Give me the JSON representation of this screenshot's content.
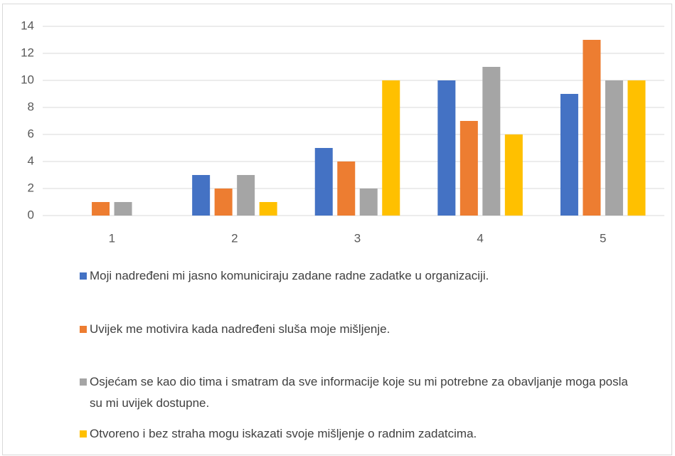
{
  "chart_data": {
    "type": "bar",
    "categories": [
      "1",
      "2",
      "3",
      "4",
      "5"
    ],
    "series": [
      {
        "name": "Moji nadređeni mi jasno komuniciraju zadane radne zadatke u organizaciji.",
        "color": "#4472c4",
        "values": [
          0,
          3,
          5,
          10,
          9
        ]
      },
      {
        "name": "Uvijek me motivira kada nadređeni sluša moje mišljenje.",
        "color": "#ed7d31",
        "values": [
          1,
          2,
          4,
          7,
          13
        ]
      },
      {
        "name": "Osjećam se kao dio tima i smatram da sve informacije koje su mi potrebne za obavljanje moga posla su mi uvijek dostupne.",
        "color": "#a5a5a5",
        "values": [
          1,
          3,
          2,
          11,
          10
        ]
      },
      {
        "name": "Otvoreno i bez straha mogu iskazati svoje mišljenje o radnim zadatcima.",
        "color": "#ffc000",
        "values": [
          0,
          1,
          10,
          6,
          10
        ]
      }
    ],
    "ylim": [
      0,
      14
    ],
    "yticks": [
      0,
      2,
      4,
      6,
      8,
      10,
      12,
      14
    ],
    "grid": true,
    "legend": "bottom"
  }
}
